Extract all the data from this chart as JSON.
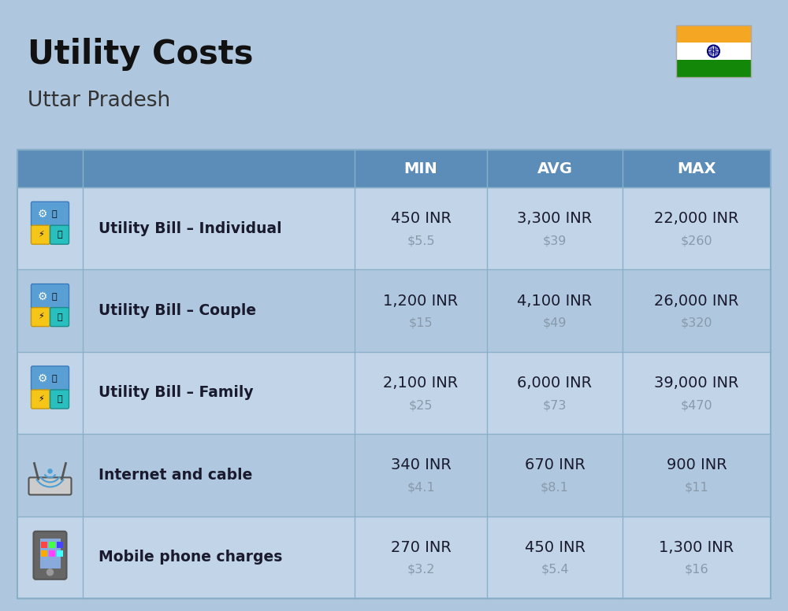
{
  "title": "Utility Costs",
  "subtitle": "Uttar Pradesh",
  "background_color": "#aec6de",
  "header_bg_color": "#5b8db8",
  "row_bg_color_1": "#c2d5e8",
  "row_bg_color_2": "#b0c8df",
  "header_text_color": "#ffffff",
  "cell_text_color": "#1a1a2e",
  "usd_text_color": "#8899aa",
  "col_headers": [
    "MIN",
    "AVG",
    "MAX"
  ],
  "rows": [
    {
      "label": "Utility Bill – Individual",
      "min_inr": "450 INR",
      "min_usd": "$5.5",
      "avg_inr": "3,300 INR",
      "avg_usd": "$39",
      "max_inr": "22,000 INR",
      "max_usd": "$260"
    },
    {
      "label": "Utility Bill – Couple",
      "min_inr": "1,200 INR",
      "min_usd": "$15",
      "avg_inr": "4,100 INR",
      "avg_usd": "$49",
      "max_inr": "26,000 INR",
      "max_usd": "$320"
    },
    {
      "label": "Utility Bill – Family",
      "min_inr": "2,100 INR",
      "min_usd": "$25",
      "avg_inr": "6,000 INR",
      "avg_usd": "$73",
      "max_inr": "39,000 INR",
      "max_usd": "$470"
    },
    {
      "label": "Internet and cable",
      "min_inr": "340 INR",
      "min_usd": "$4.1",
      "avg_inr": "670 INR",
      "avg_usd": "$8.1",
      "max_inr": "900 INR",
      "max_usd": "$11"
    },
    {
      "label": "Mobile phone charges",
      "min_inr": "270 INR",
      "min_usd": "$3.2",
      "avg_inr": "450 INR",
      "avg_usd": "$5.4",
      "max_inr": "1,300 INR",
      "max_usd": "$16"
    }
  ],
  "flag_colors": [
    "#f5a623",
    "#ffffff",
    "#138808"
  ],
  "flag_ashoka_color": "#000080",
  "line_color": "#8aafc8"
}
